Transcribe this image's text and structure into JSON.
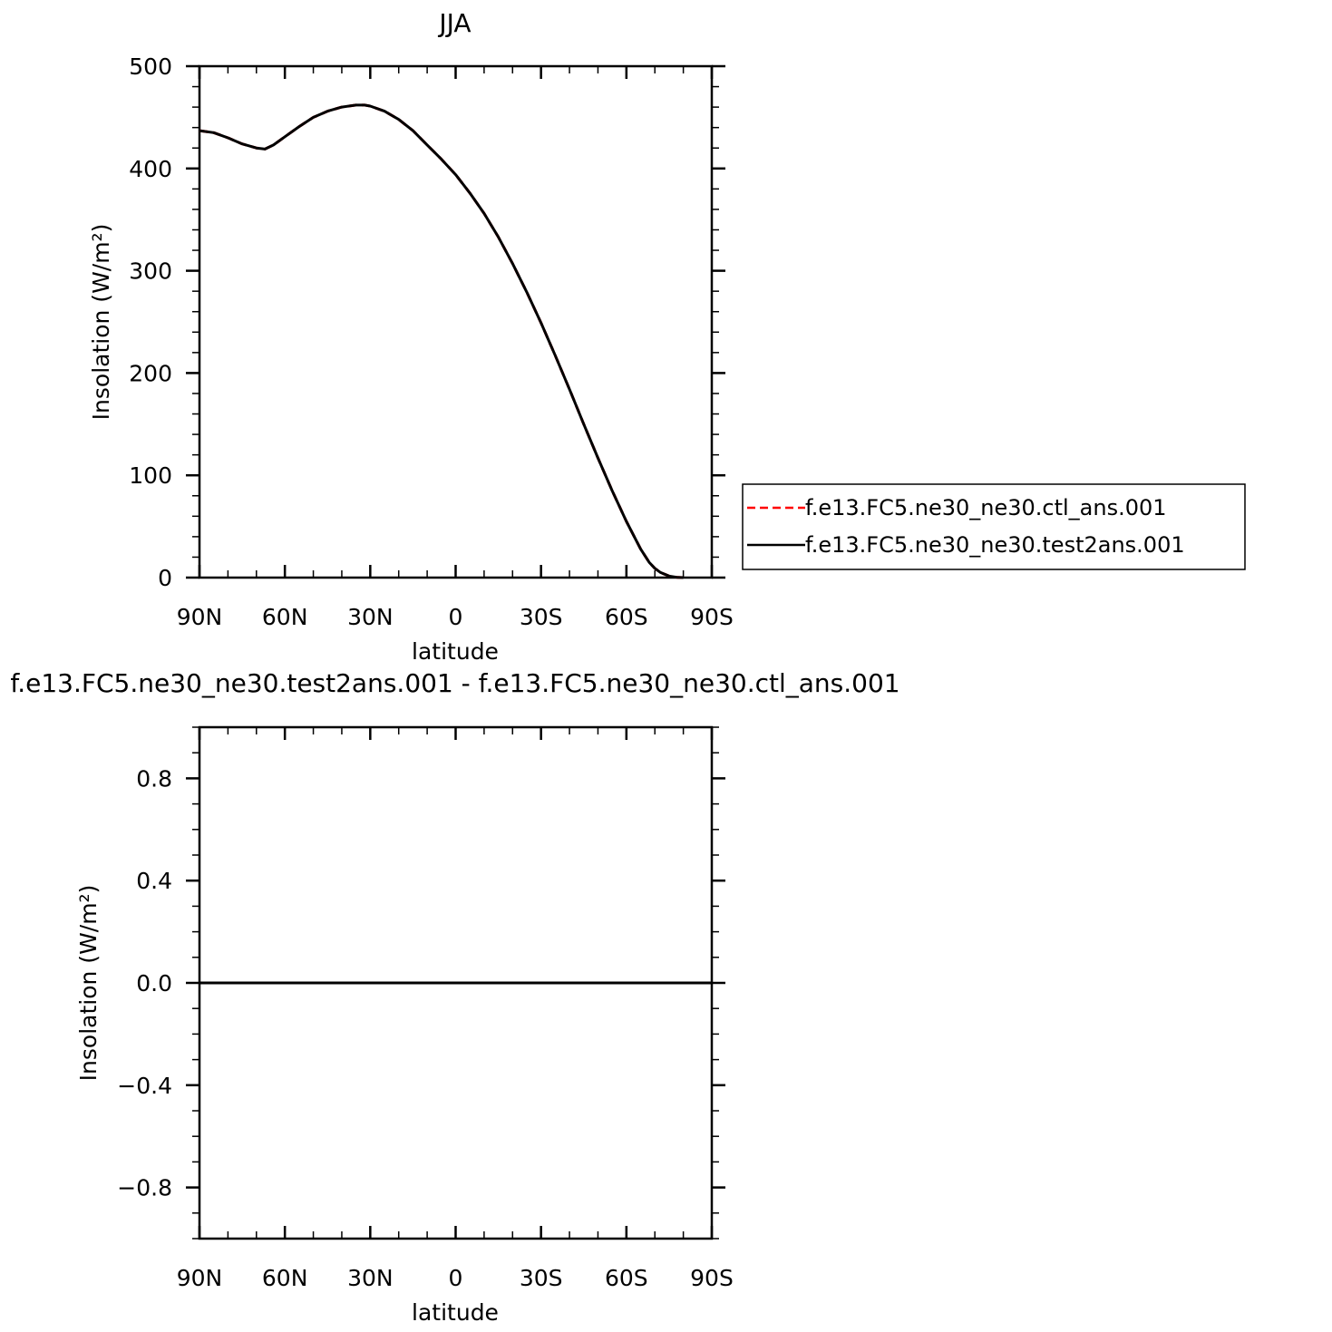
{
  "chart_data": [
    {
      "type": "line",
      "title": "JJA",
      "xlabel": "latitude",
      "ylabel": "Insolation (W/m²)",
      "xlim": [
        90,
        -90
      ],
      "ylim": [
        0,
        500
      ],
      "x_ticks": [
        {
          "value": 90,
          "label": "90N"
        },
        {
          "value": 60,
          "label": "60N"
        },
        {
          "value": 30,
          "label": "30N"
        },
        {
          "value": 0,
          "label": "0"
        },
        {
          "value": -30,
          "label": "30S"
        },
        {
          "value": -60,
          "label": "60S"
        },
        {
          "value": -90,
          "label": "90S"
        }
      ],
      "y_ticks": [
        {
          "value": 0,
          "label": "0"
        },
        {
          "value": 100,
          "label": "100"
        },
        {
          "value": 200,
          "label": "200"
        },
        {
          "value": 300,
          "label": "300"
        },
        {
          "value": 400,
          "label": "400"
        },
        {
          "value": 500,
          "label": "500"
        }
      ],
      "grid": false,
      "legend_position": "right",
      "x": [
        90,
        85,
        80,
        75,
        70,
        67,
        64,
        60,
        55,
        50,
        45,
        40,
        35,
        32,
        30,
        25,
        20,
        15,
        10,
        5,
        0,
        -5,
        -10,
        -15,
        -20,
        -25,
        -30,
        -35,
        -40,
        -45,
        -50,
        -55,
        -60,
        -65,
        -68,
        -70,
        -72,
        -75,
        -78,
        -80
      ],
      "series": [
        {
          "name": "f.e13.FC5.ne30_ne30.ctl_ans.001",
          "color": "#ff0000",
          "dash": "dashed",
          "values": [
            437,
            435,
            430,
            424,
            420,
            419,
            423,
            431,
            441,
            450,
            456,
            460,
            462,
            462,
            461,
            456,
            448,
            437,
            423,
            409,
            394,
            376,
            356,
            333,
            307,
            279,
            249,
            217,
            184,
            150,
            117,
            85,
            55,
            28,
            15,
            9,
            5,
            1.5,
            0.2,
            0
          ]
        },
        {
          "name": "f.e13.FC5.ne30_ne30.test2ans.001",
          "color": "#000000",
          "dash": "solid",
          "values": [
            437,
            435,
            430,
            424,
            420,
            419,
            423,
            431,
            441,
            450,
            456,
            460,
            462,
            462,
            461,
            456,
            448,
            437,
            423,
            409,
            394,
            376,
            356,
            333,
            307,
            279,
            249,
            217,
            184,
            150,
            117,
            85,
            55,
            28,
            15,
            9,
            5,
            1.5,
            0.2,
            0
          ]
        }
      ]
    },
    {
      "type": "line",
      "title": "f.e13.FC5.ne30_ne30.test2ans.001 - f.e13.FC5.ne30_ne30.ctl_ans.001",
      "xlabel": "latitude",
      "ylabel": "Insolation (W/m²)",
      "xlim": [
        90,
        -90
      ],
      "ylim": [
        -1,
        1
      ],
      "x_ticks": [
        {
          "value": 90,
          "label": "90N"
        },
        {
          "value": 60,
          "label": "60N"
        },
        {
          "value": 30,
          "label": "30N"
        },
        {
          "value": 0,
          "label": "0"
        },
        {
          "value": -30,
          "label": "30S"
        },
        {
          "value": -60,
          "label": "60S"
        },
        {
          "value": -90,
          "label": "90S"
        }
      ],
      "y_ticks": [
        {
          "value": -0.8,
          "label": "−0.8"
        },
        {
          "value": -0.4,
          "label": "−0.4"
        },
        {
          "value": 0.0,
          "label": "0.0"
        },
        {
          "value": 0.4,
          "label": "0.4"
        },
        {
          "value": 0.8,
          "label": "0.8"
        }
      ],
      "grid": false,
      "x": [
        90,
        -90
      ],
      "series": [
        {
          "color": "#000000",
          "dash": "solid",
          "values": [
            0,
            0
          ]
        }
      ]
    }
  ]
}
